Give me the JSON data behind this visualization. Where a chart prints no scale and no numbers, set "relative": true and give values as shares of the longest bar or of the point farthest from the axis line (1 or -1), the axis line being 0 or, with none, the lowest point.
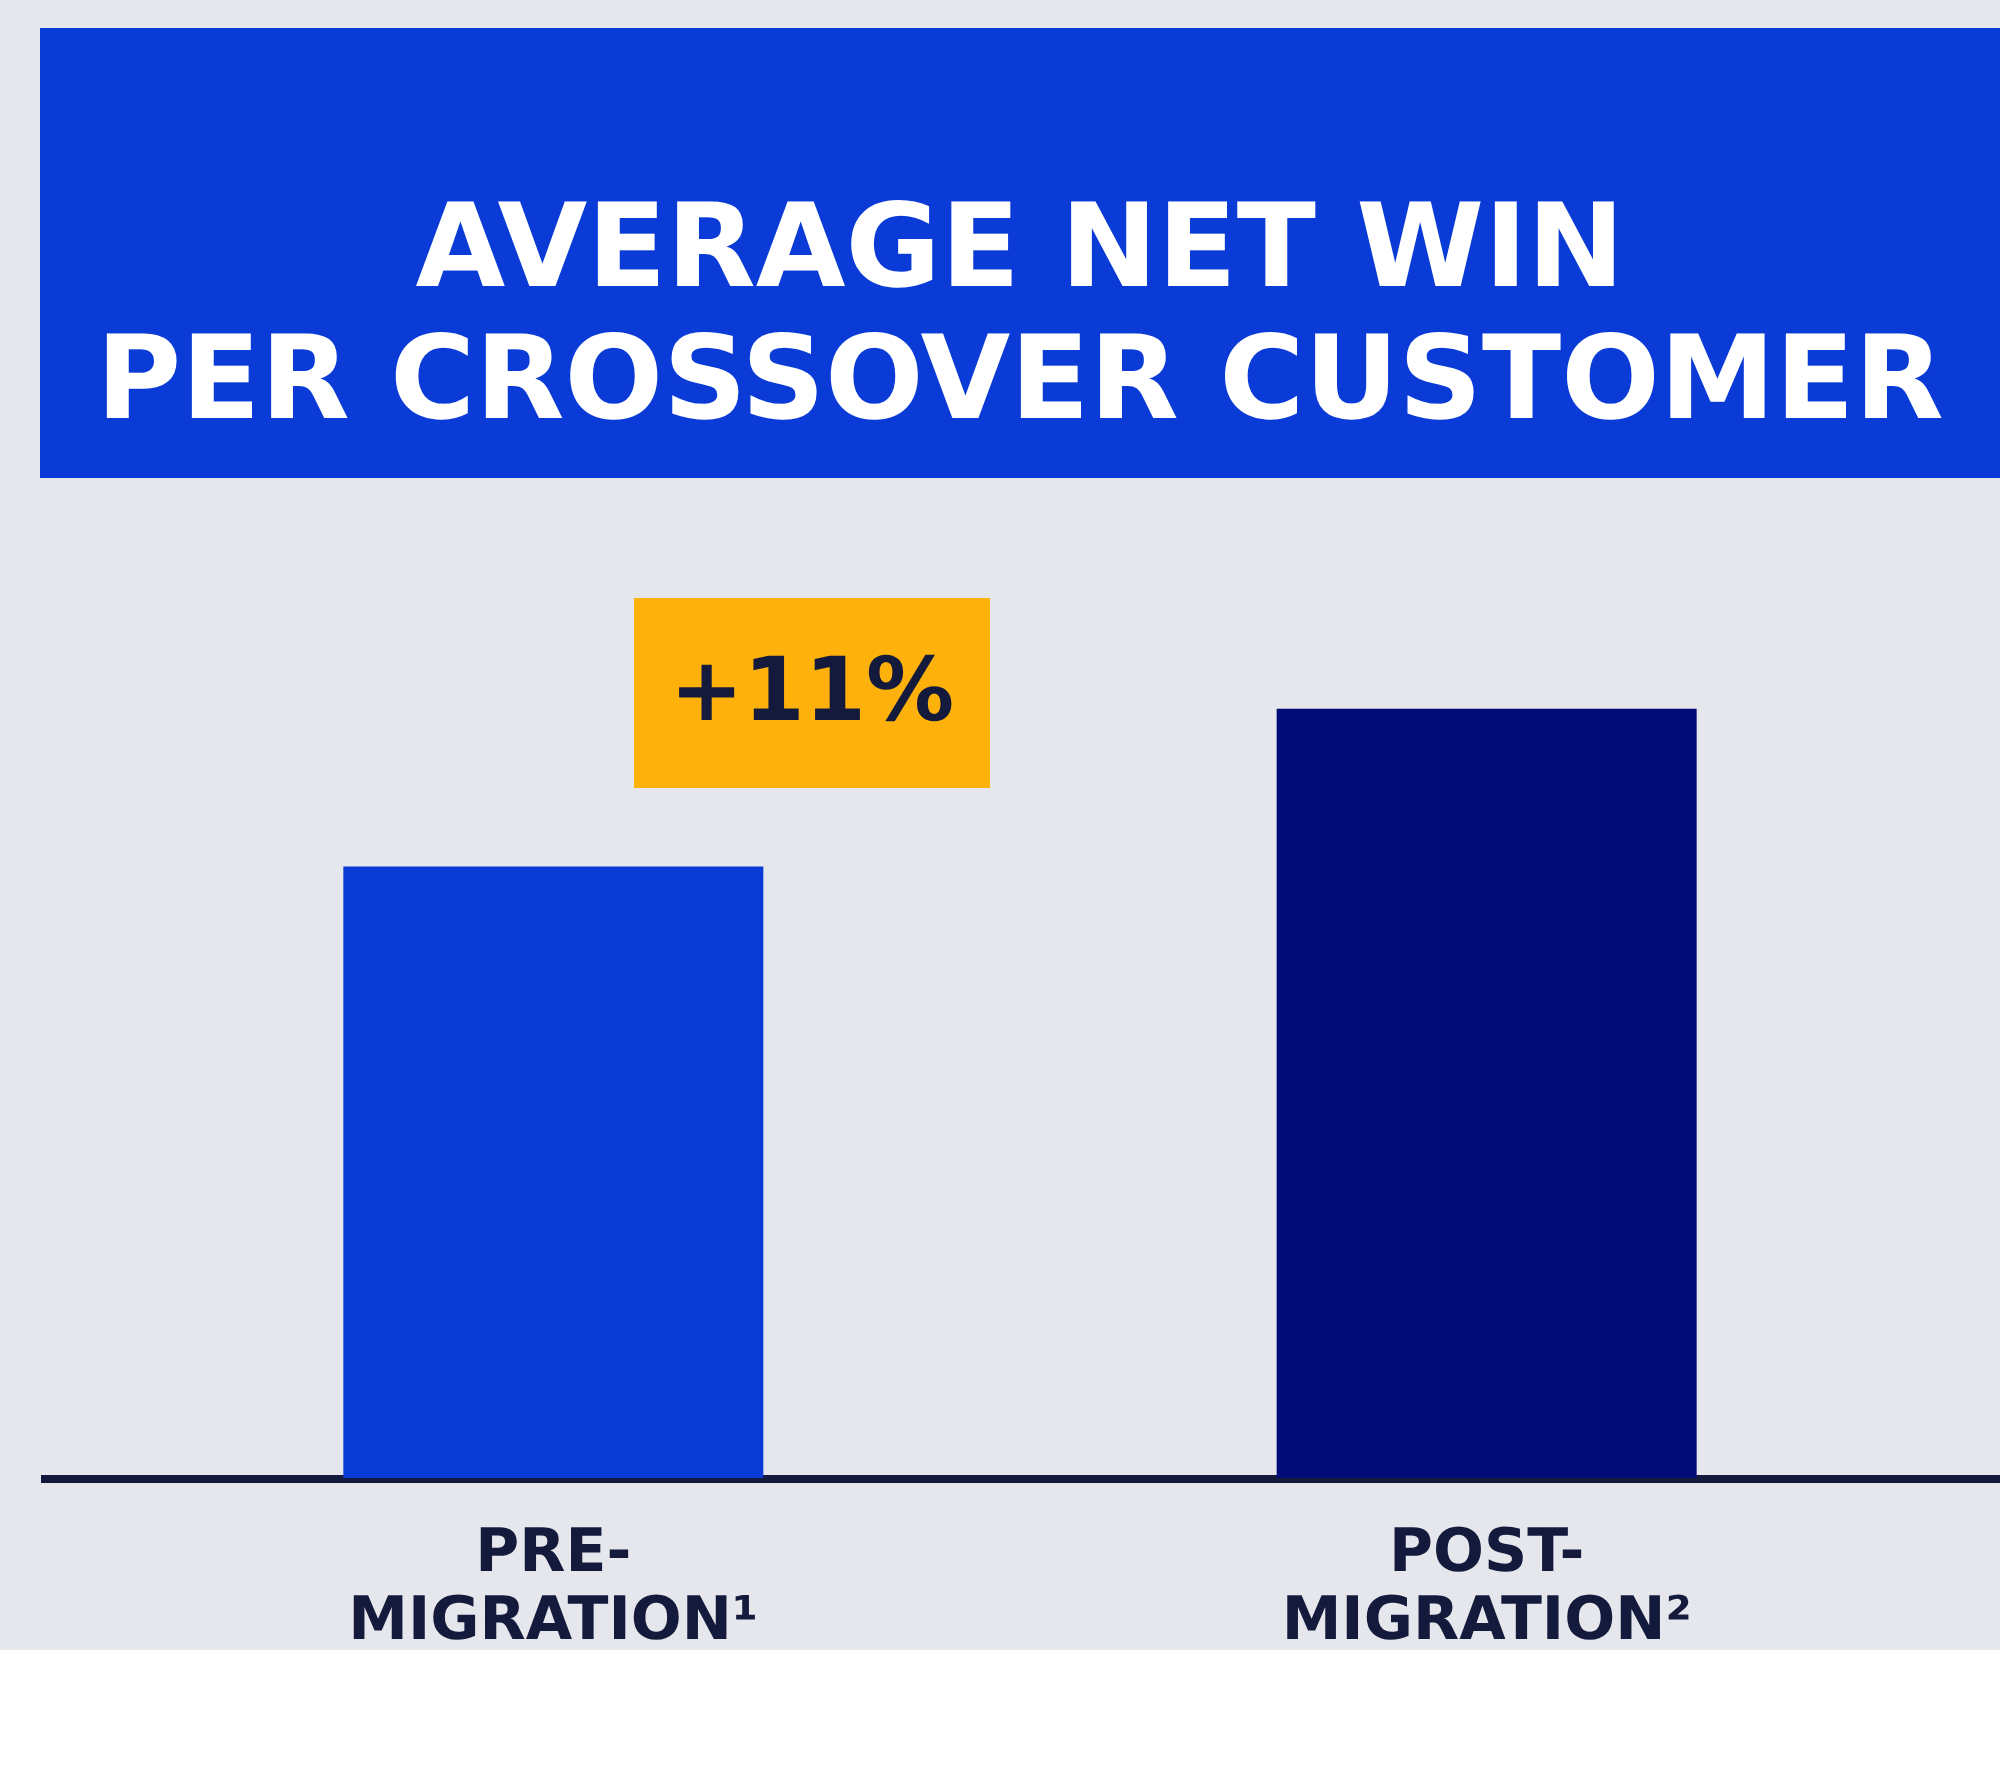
{
  "chart_data": {
    "type": "bar",
    "title": "AVERAGE NET WIN\nPER CROSSOVER CUSTOMER",
    "categories": [
      "PRE-\nMIGRATION¹",
      "POST-\nMIGRATION²"
    ],
    "values": [
      0.795,
      1
    ],
    "colors": [
      "#0a3bd6",
      "#020c78"
    ],
    "relative": true,
    "annotations": [
      "+11%"
    ],
    "grid": false,
    "legend": false
  }
}
